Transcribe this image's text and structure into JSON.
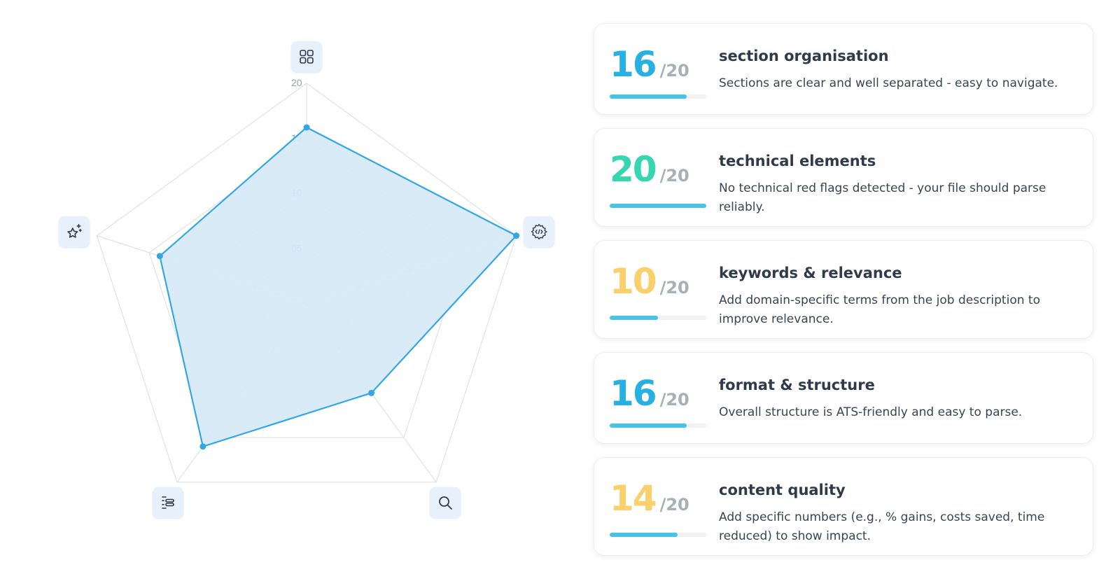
{
  "colors": {
    "accent": "#33a7e6",
    "fill": "#d6e9f7",
    "grid": "#dddddd",
    "bar": "#44c4ea",
    "score_blue": "#27b1e3",
    "score_green": "#36d6b0",
    "score_yellow": "#f9d06b"
  },
  "radar": {
    "max": 20,
    "ticks": [
      "05",
      "10",
      "15",
      "20"
    ],
    "axes": [
      {
        "icon": "grid-icon",
        "value": 16
      },
      {
        "icon": "code-gear-icon",
        "value": 20
      },
      {
        "icon": "search-icon",
        "value": 10
      },
      {
        "icon": "list-icon",
        "value": 16
      },
      {
        "icon": "sparkle-star-icon",
        "value": 14
      }
    ]
  },
  "cards": [
    {
      "score": "16",
      "max": "/20",
      "progress": 0.8,
      "color": "#27b1e3",
      "title": "section organisation",
      "desc": "Sections are clear and well separated - easy to navigate."
    },
    {
      "score": "20",
      "max": "/20",
      "progress": 1.0,
      "color": "#36d6b0",
      "title": "technical elements",
      "desc": "No technical red flags detected - your file should parse reliably."
    },
    {
      "score": "10",
      "max": "/20",
      "progress": 0.5,
      "color": "#f9d06b",
      "title": "keywords & relevance",
      "desc": "Add domain-specific terms from the job description to improve relevance."
    },
    {
      "score": "16",
      "max": "/20",
      "progress": 0.8,
      "color": "#27b1e3",
      "title": "format & structure",
      "desc": "Overall structure is ATS-friendly and easy to parse."
    },
    {
      "score": "14",
      "max": "/20",
      "progress": 0.7,
      "color": "#f9d06b",
      "title": "content quality",
      "desc": "Add specific numbers (e.g., % gains, costs saved, time reduced) to show impact."
    }
  ]
}
